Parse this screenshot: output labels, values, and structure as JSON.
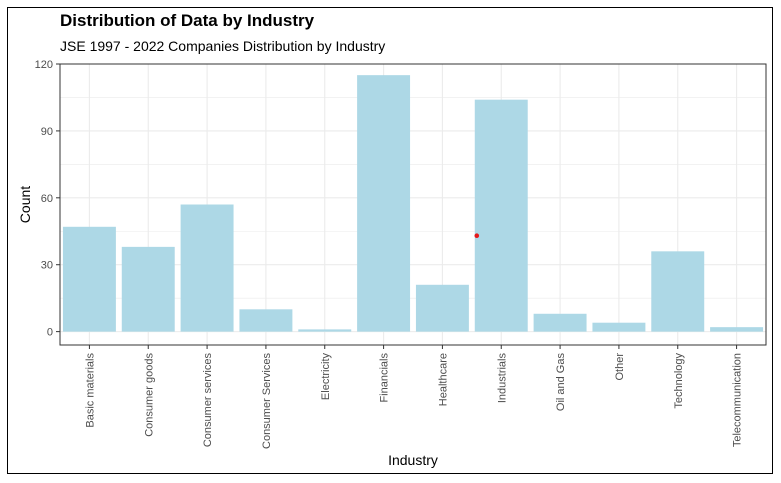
{
  "chart_data": {
    "type": "bar",
    "title": "Distribution of Data by Industry",
    "subtitle": "JSE 1997 - 2022 Companies Distribution by Industry",
    "xlabel": "Industry",
    "ylabel": "Count",
    "categories": [
      "Basic materials",
      "Consumer goods",
      "Consumer services",
      "Consumer Services",
      "Electricity",
      "Financials",
      "Healthcare",
      "Industrials",
      "Oil and Gas",
      "Other",
      "Technology",
      "Telecommunication"
    ],
    "values": [
      47,
      38,
      57,
      10,
      1,
      115,
      21,
      104,
      8,
      4,
      36,
      2
    ],
    "ylim": [
      -6,
      120
    ],
    "yticks": [
      0,
      30,
      60,
      90,
      120
    ],
    "grid": true,
    "colors": {
      "bar": "#add8e6",
      "grid": "#ebebeb",
      "marker": "#e31a1c"
    },
    "marker_point": {
      "category": "Industrials",
      "value": 43
    }
  }
}
